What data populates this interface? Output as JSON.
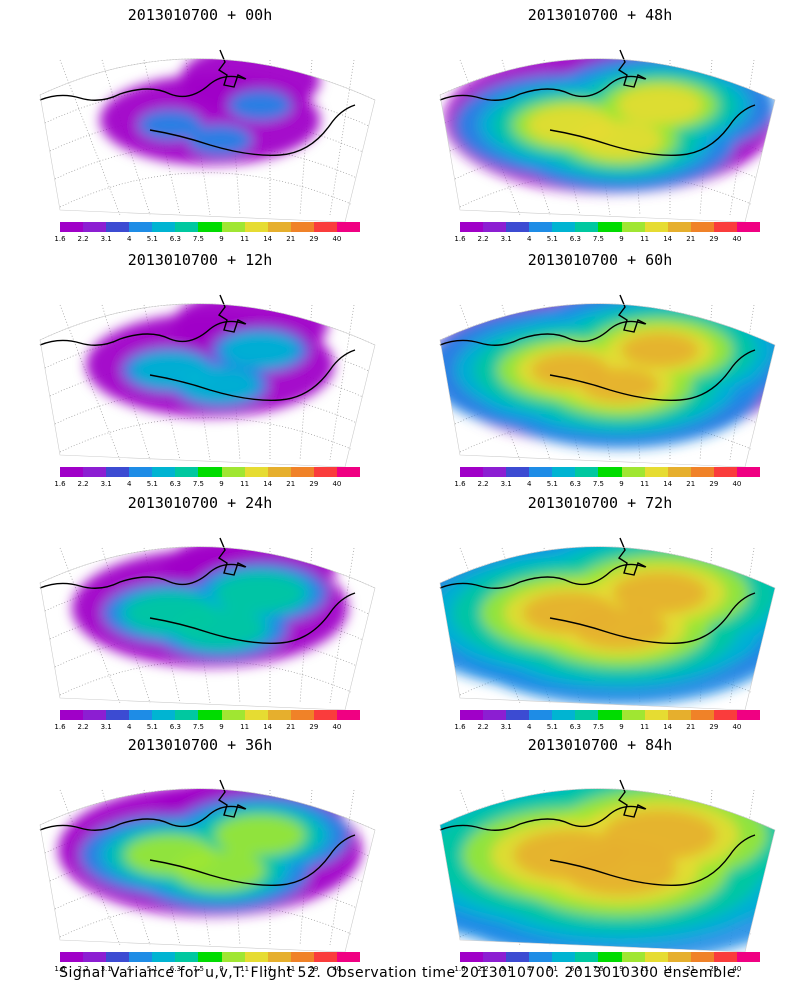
{
  "colorbar": {
    "labels": [
      "1.6",
      "2.2",
      "3.1",
      "4",
      "5.1",
      "6.3",
      "7.5",
      "9",
      "11",
      "14",
      "21",
      "29",
      "40"
    ],
    "colors": [
      "#a000c8",
      "#8c1ed2",
      "#3c4bd2",
      "#1e8ce6",
      "#00b4d2",
      "#00c8a0",
      "#00dc00",
      "#a0e632",
      "#e6dc32",
      "#e6af2d",
      "#f08228",
      "#fa3c3c",
      "#f00082"
    ]
  },
  "panels": [
    {
      "title": "2013010700 + 00h",
      "level": 0
    },
    {
      "title": "2013010700 + 48h",
      "level": 4
    },
    {
      "title": "2013010700 + 12h",
      "level": 1
    },
    {
      "title": "2013010700 + 60h",
      "level": 5
    },
    {
      "title": "2013010700 + 24h",
      "level": 2
    },
    {
      "title": "2013010700 + 72h",
      "level": 6
    },
    {
      "title": "2013010700 + 36h",
      "level": 3
    },
    {
      "title": "2013010700 + 84h",
      "level": 7
    }
  ],
  "footer": "Signal Variance for u,v,T. Flight 52. Observation time 2013010700. 2013010300 ensemble."
}
